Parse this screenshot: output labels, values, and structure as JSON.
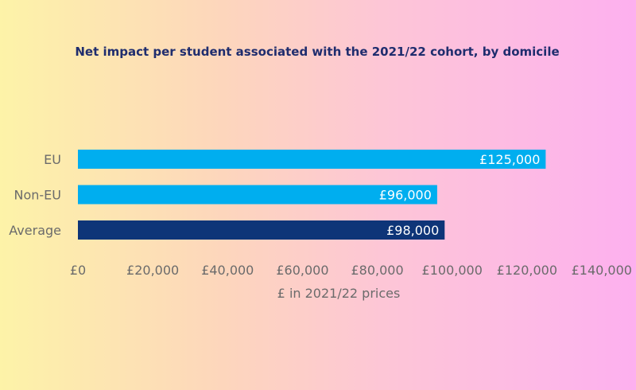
{
  "chart_data": {
    "type": "bar",
    "orientation": "horizontal",
    "title": "Net impact per student associated with the 2021/22 cohort, by domicile",
    "xlabel": "£ in 2021/22 prices",
    "ylabel": "",
    "categories": [
      "EU",
      "Non-EU",
      "Average"
    ],
    "values": [
      125000,
      96000,
      98000
    ],
    "data_labels": [
      "£125,000",
      "£96,000",
      "£98,000"
    ],
    "bar_colors": [
      "#00aeef",
      "#00aeef",
      "#0e3578"
    ],
    "xlim": [
      0,
      140000
    ],
    "x_ticks": [
      0,
      20000,
      40000,
      60000,
      80000,
      100000,
      120000,
      140000
    ],
    "x_tick_labels": [
      "£0",
      "£20,000",
      "£40,000",
      "£60,000",
      "£80,000",
      "£100,000",
      "£120,000",
      "£140,000"
    ],
    "grid": false,
    "legend": "none"
  }
}
